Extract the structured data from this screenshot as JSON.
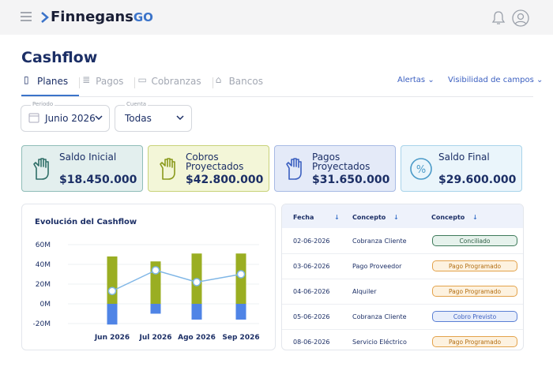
{
  "header": {
    "brand": "Finnegans",
    "brand_suffix": "GO"
  },
  "page_title": "Cashflow",
  "tabs": [
    "Planes",
    "Pagos",
    "Cobranzas",
    "Bancos"
  ],
  "links": [
    "Alertas",
    "Visibilidad de campos"
  ],
  "filters": [
    {
      "label": "Periodo",
      "value": "Junio 2026"
    },
    {
      "label": "Cuenta",
      "value": "Todas"
    }
  ],
  "cards": [
    {
      "label": "Saldo Inicial",
      "value": "$18.450.000"
    },
    {
      "label": "Cobros Proyectados",
      "value": "$42.800.000"
    },
    {
      "label": "Pagos Proyectados",
      "value": "$31.650.000"
    },
    {
      "label": "Saldo Final",
      "value": "$29.600.000"
    }
  ],
  "chart_data": {
    "type": "bar",
    "title": "Evolución del Cashflow",
    "categories": [
      "Jun 2026",
      "Jul 2026",
      "Ago 2026",
      "Sep 2026"
    ],
    "series": [
      {
        "color": "#9aae22",
        "values": [
          48,
          43,
          51,
          51
        ]
      },
      {
        "color": "#4f84e6",
        "values": [
          -21,
          -10,
          -16,
          -16
        ]
      },
      {
        "color": "#7fb6e6",
        "type": "line",
        "values": [
          13,
          34,
          22,
          30
        ]
      }
    ],
    "ylim": [
      -20,
      60
    ],
    "yticks": [
      {
        "value": -20,
        "label": "-20M"
      },
      {
        "value": 0,
        "label": "0M"
      },
      {
        "value": 20,
        "label": "20M"
      },
      {
        "value": 40,
        "label": "40M"
      },
      {
        "value": 60,
        "label": "60M"
      }
    ],
    "grid": true
  },
  "table": {
    "columns": [
      "Fecha",
      "Concepto",
      "Concepto"
    ],
    "rows": [
      [
        "02-06-2026",
        "Cobranza Cliente",
        "Conciliado"
      ],
      [
        "03-06-2026",
        "Pago Proveedor",
        "Pago Programado"
      ],
      [
        "04-06-2026",
        "Alquiler",
        "Pago Programado"
      ],
      [
        "05-06-2026",
        "Cobranza Cliente",
        "Cobro Previsto"
      ],
      [
        "08-06-2026",
        "Servicio Eléctrico",
        "Pago Programado"
      ]
    ]
  }
}
